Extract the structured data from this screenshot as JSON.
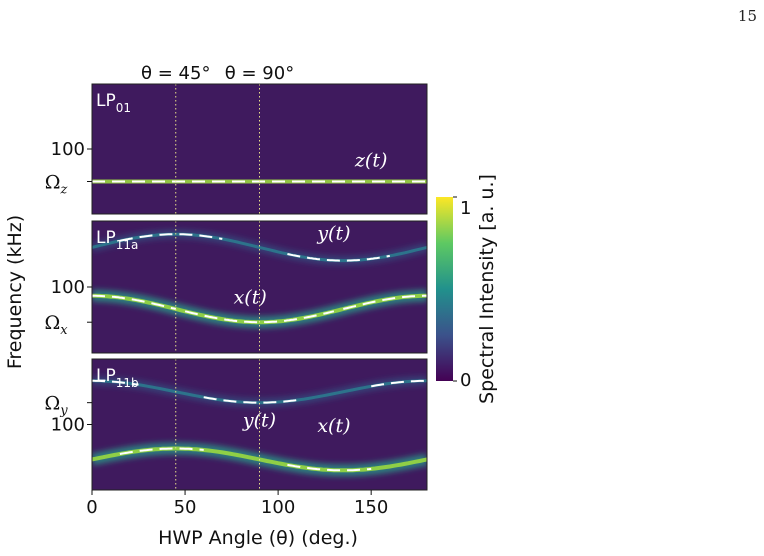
{
  "page_number": "15",
  "chart_data": {
    "type": "heatmap",
    "xlabel": "HWP Angle (θ) (deg.)",
    "ylabel": "Frequency (kHz)",
    "xlim": [
      0,
      180
    ],
    "x_ticks": [
      "0",
      "50",
      "100",
      "150"
    ],
    "x_tick_values": [
      0,
      50,
      100,
      150
    ],
    "markers": [
      {
        "label": "θ = 45°",
        "x": 45
      },
      {
        "label": "θ = 90°",
        "x": 90
      }
    ],
    "colorbar": {
      "label": "Spectral Intensity [a. u.]",
      "min_label": "0",
      "max_label": "1",
      "colormap": "viridis"
    },
    "panels": [
      {
        "label_main": "LP",
        "label_sub": "01",
        "ylim": [
          40,
          160
        ],
        "y_ticks": [
          {
            "value": 100,
            "text": "100"
          }
        ],
        "omega": {
          "value": 70,
          "main": "Ω",
          "sub": "z"
        },
        "curves": [
          {
            "label": "z(t)",
            "label_x": 150,
            "label_y": 84,
            "type": "flat",
            "center": 70,
            "amp": 0,
            "bright": true,
            "segments": [
              [
                0,
                180
              ]
            ]
          }
        ]
      },
      {
        "label_main": "LP",
        "label_sub": "11a",
        "ylim": [
          40,
          160
        ],
        "y_ticks": [
          {
            "value": 100,
            "text": "100"
          }
        ],
        "omega": {
          "value": 68,
          "main": "Ω",
          "sub": "x"
        },
        "curves": [
          {
            "label": "y(t)",
            "label_x": 130,
            "label_y": 143,
            "type": "sin",
            "center": 136,
            "amp": 12,
            "bright": false,
            "segments": [
              [
                15,
                70
              ],
              [
                105,
                160
              ]
            ]
          },
          {
            "label": "x(t)",
            "label_x": 85,
            "label_y": 85,
            "type": "cos",
            "center": 80,
            "amp": 12,
            "bright": true,
            "segments": [
              [
                0,
                45
              ],
              [
                50,
                130
              ],
              [
                135,
                180
              ]
            ]
          }
        ]
      },
      {
        "label_main": "LP",
        "label_sub": "11b",
        "ylim": [
          40,
          160
        ],
        "y_ticks": [
          {
            "value": 100,
            "text": "100"
          }
        ],
        "omega": {
          "value": 120,
          "main": "Ω",
          "sub": "y"
        },
        "curves": [
          {
            "label": "y(t)",
            "label_x": 90,
            "label_y": 98,
            "type": "cos",
            "center": 130,
            "amp": 10,
            "bright": false,
            "segments": [
              [
                0,
                25
              ],
              [
                60,
                110
              ],
              [
                150,
                180
              ]
            ]
          },
          {
            "label": "x(t)",
            "label_x": 130,
            "label_y": 93,
            "type": "sin",
            "center": 68,
            "amp": 10,
            "bright": true,
            "segments": [
              [
                15,
                60
              ],
              [
                105,
                150
              ]
            ]
          }
        ]
      }
    ]
  }
}
